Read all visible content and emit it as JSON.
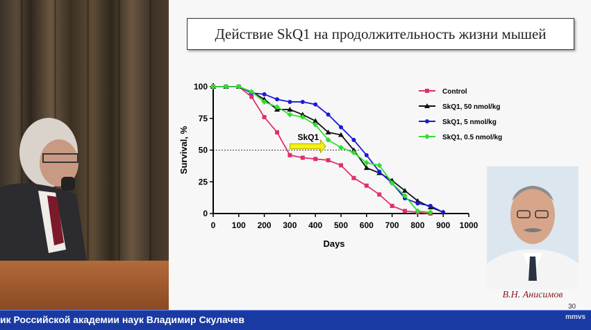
{
  "slide": {
    "title": "Действие SkQ1 на продолжительность жизни мышей",
    "annotation": "SkQ1",
    "portrait_caption": "В.Н. Анисимов",
    "page_number": "30"
  },
  "ticker": {
    "text": "ик Российской академии наук Владимир Скулачев",
    "logo": "mmvs"
  },
  "chart_data": {
    "type": "line",
    "title": "",
    "xlabel": "Days",
    "ylabel": "Survival, %",
    "xlim": [
      0,
      1000
    ],
    "ylim": [
      0,
      100
    ],
    "xticks": [
      0,
      100,
      200,
      300,
      400,
      500,
      600,
      700,
      800,
      900,
      1000
    ],
    "yticks": [
      0,
      25,
      50,
      75,
      100
    ],
    "legend_position": "top-right",
    "reference_line_y": 50,
    "series": [
      {
        "name": "Control",
        "color": "#e0306a",
        "marker": "square",
        "x": [
          0,
          50,
          100,
          150,
          200,
          250,
          300,
          350,
          400,
          450,
          500,
          550,
          600,
          650,
          700,
          750,
          800,
          850
        ],
        "y": [
          100,
          100,
          100,
          92,
          76,
          64,
          46,
          44,
          43,
          42,
          38,
          28,
          22,
          15,
          6,
          2,
          1,
          0
        ]
      },
      {
        "name": "SkQ1,  50 nmol/kg",
        "color": "#111111",
        "marker": "triangle",
        "x": [
          0,
          50,
          100,
          150,
          200,
          250,
          300,
          350,
          400,
          450,
          500,
          550,
          600,
          650,
          700,
          750,
          800,
          850,
          900
        ],
        "y": [
          100,
          100,
          100,
          96,
          90,
          82,
          82,
          78,
          73,
          64,
          62,
          50,
          36,
          32,
          26,
          18,
          10,
          5,
          1
        ]
      },
      {
        "name": "SkQ1,  5  nmol/kg",
        "color": "#1a1ad0",
        "marker": "circle",
        "x": [
          0,
          50,
          100,
          150,
          200,
          250,
          300,
          350,
          400,
          450,
          500,
          550,
          600,
          650,
          700,
          750,
          800,
          850,
          900
        ],
        "y": [
          100,
          100,
          100,
          95,
          94,
          90,
          88,
          88,
          86,
          78,
          68,
          58,
          46,
          33,
          24,
          12,
          8,
          6,
          1
        ]
      },
      {
        "name": "SkQ1,  0.5  nmol/kg",
        "color": "#33dd33",
        "marker": "diamond",
        "x": [
          0,
          50,
          100,
          150,
          200,
          250,
          300,
          350,
          400,
          450,
          500,
          550,
          600,
          650,
          700,
          750,
          800,
          850
        ],
        "y": [
          100,
          100,
          100,
          96,
          88,
          84,
          78,
          76,
          70,
          58,
          52,
          48,
          40,
          38,
          24,
          14,
          2,
          1
        ]
      }
    ]
  }
}
